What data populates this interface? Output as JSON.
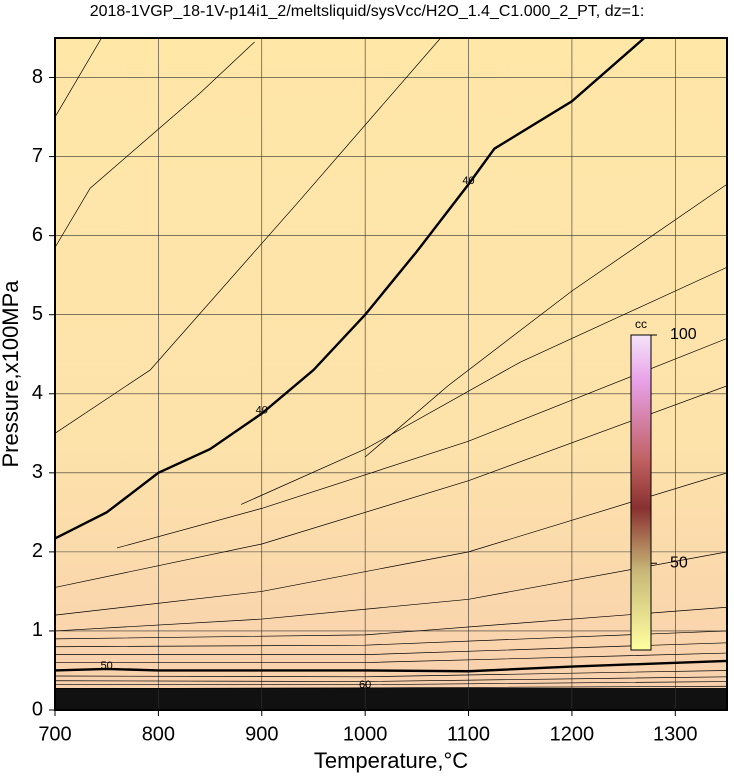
{
  "chart_data": {
    "type": "contour",
    "title": "2018-1VGP_18-1V-p14i1_2/meltsliquid/sysVcc/H2O_1.4_C1.000_2_PT, dz=1:",
    "x_label": "Temperature,°C",
    "y_label": "Pressure,x100MPa",
    "xlim": [
      700,
      1350
    ],
    "ylim": [
      0,
      8.5
    ],
    "xticks": [
      700,
      800,
      900,
      1000,
      1100,
      1200,
      1300
    ],
    "yticks": [
      0,
      1,
      2,
      3,
      4,
      5,
      6,
      7,
      8
    ],
    "grid": true,
    "contours": [
      {
        "label": "40",
        "bold": true,
        "x": [
          700,
          750,
          800,
          850,
          900,
          950,
          1000,
          1050,
          1100,
          1125,
          1200,
          1270
        ],
        "y": [
          2.17,
          2.5,
          3.0,
          3.3,
          3.75,
          4.3,
          5.0,
          5.8,
          6.65,
          7.1,
          7.7,
          8.5
        ]
      },
      {
        "label": "50",
        "bold": true,
        "x": [
          700,
          750,
          800,
          1000,
          1100,
          1200,
          1350
        ],
        "y": [
          0.5,
          0.52,
          0.5,
          0.5,
          0.49,
          0.55,
          0.62
        ]
      },
      {
        "label": "60",
        "bold": false,
        "x": [
          700,
          1000,
          1350
        ],
        "y": [
          0.27,
          0.28,
          0.3
        ]
      },
      {
        "x": [
          700,
          745
        ],
        "y": [
          7.5,
          8.5
        ]
      },
      {
        "x": [
          700,
          734,
          840,
          893
        ],
        "y": [
          5.85,
          6.6,
          7.8,
          8.45
        ]
      },
      {
        "x": [
          700,
          792,
          937,
          1073
        ],
        "y": [
          3.5,
          4.3,
          6.45,
          8.5
        ]
      },
      {
        "x": [
          1000,
          1080,
          1200,
          1350
        ],
        "y": [
          3.2,
          4.1,
          5.3,
          6.65
        ]
      },
      {
        "x": [
          880,
          1000,
          1150,
          1350
        ],
        "y": [
          2.6,
          3.3,
          4.4,
          5.6
        ]
      },
      {
        "x": [
          760,
          900,
          1100,
          1350
        ],
        "y": [
          2.05,
          2.55,
          3.4,
          4.7
        ]
      },
      {
        "x": [
          700,
          900,
          1100,
          1350
        ],
        "y": [
          1.55,
          2.1,
          2.9,
          4.1
        ]
      },
      {
        "x": [
          700,
          900,
          1100,
          1350
        ],
        "y": [
          1.2,
          1.5,
          2.0,
          3.0
        ]
      },
      {
        "x": [
          700,
          900,
          1100,
          1350
        ],
        "y": [
          1.0,
          1.15,
          1.4,
          2.0
        ]
      },
      {
        "x": [
          700,
          1000,
          1350
        ],
        "y": [
          0.9,
          0.95,
          1.3
        ]
      },
      {
        "x": [
          700,
          1000,
          1350
        ],
        "y": [
          0.8,
          0.82,
          1.0
        ]
      },
      {
        "x": [
          700,
          1000,
          1350
        ],
        "y": [
          0.7,
          0.7,
          0.85
        ]
      },
      {
        "x": [
          700,
          1000,
          1350
        ],
        "y": [
          0.6,
          0.6,
          0.72
        ]
      },
      {
        "x": [
          700,
          1000,
          1350
        ],
        "y": [
          0.43,
          0.42,
          0.5
        ]
      },
      {
        "x": [
          700,
          1000,
          1350
        ],
        "y": [
          0.37,
          0.36,
          0.42
        ]
      },
      {
        "x": [
          700,
          1000,
          1350
        ],
        "y": [
          0.32,
          0.32,
          0.36
        ]
      }
    ],
    "colorbar": {
      "label": "cc",
      "lim": [
        31,
        100
      ],
      "ticks": [
        50,
        100
      ]
    }
  }
}
